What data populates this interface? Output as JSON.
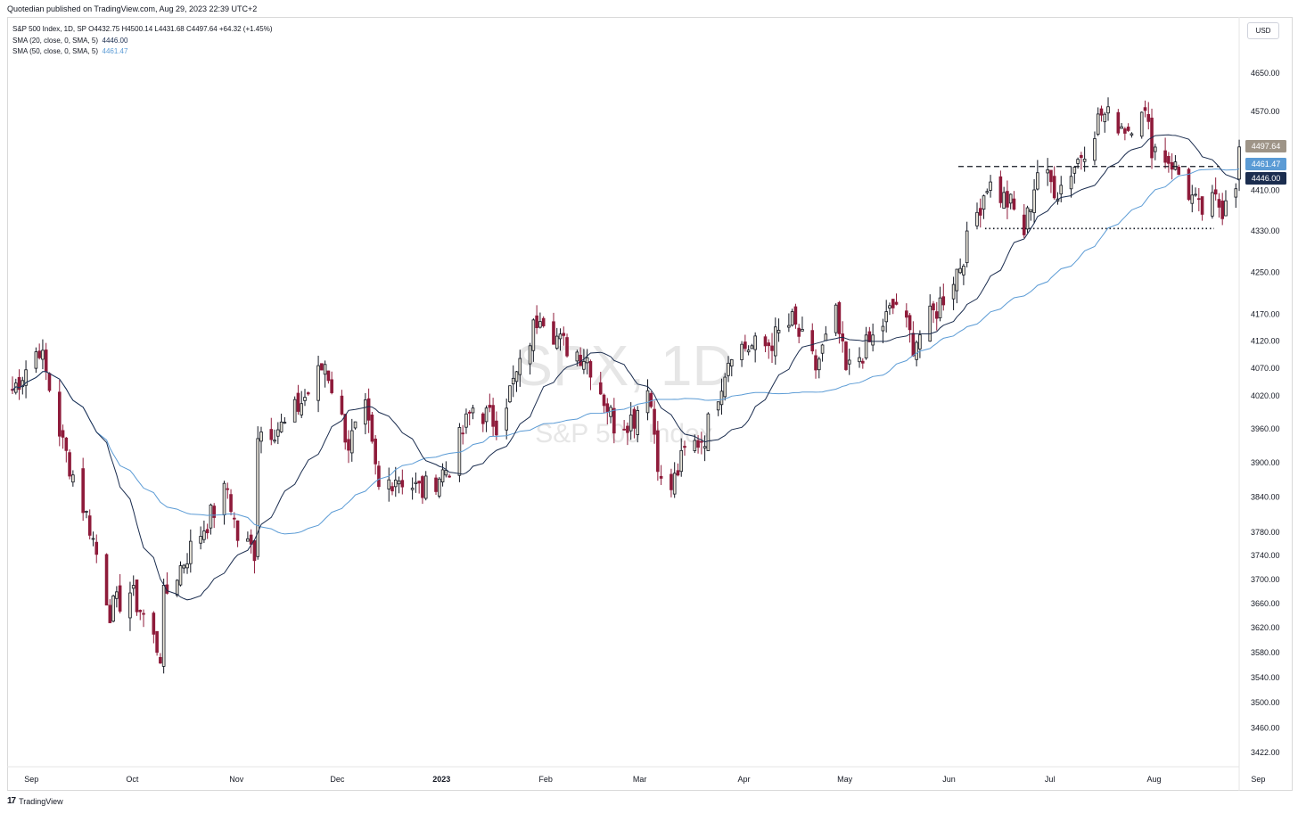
{
  "publisher": "Quotedian published on TradingView.com, Aug 29, 2023 22:39 UTC+2",
  "legend": {
    "symbol_line": "S&P 500 Index, 1D, SP  O4432.75  H4500.14  L4431.68  C4497.64  +64.32 (+1.45%)",
    "sma20_label": "SMA (20, close, 0, SMA, 5)",
    "sma20_value": "4446.00",
    "sma50_label": "SMA (50, close, 0, SMA, 5)",
    "sma50_value": "4461.47"
  },
  "currency": "USD",
  "watermark": {
    "symbol": "SPX, 1D",
    "name": "S&P 500 Index"
  },
  "footer": {
    "logo": "17",
    "brand": "TradingView"
  },
  "colors": {
    "up": "#e8e4d8",
    "down": "#8e1b3a",
    "outline": "#131722",
    "sma20": "#1b2d4f",
    "sma50": "#5b9bd5"
  },
  "chart_data": {
    "type": "candlestick",
    "y_scale": "log",
    "y_ticks": [
      "4650.00",
      "4570.00",
      "4410.00",
      "4330.00",
      "4250.00",
      "4170.00",
      "4120.00",
      "4070.00",
      "4020.00",
      "3960.00",
      "3900.00",
      "3840.00",
      "3780.00",
      "3740.00",
      "3700.00",
      "3660.00",
      "3620.00",
      "3580.00",
      "3540.00",
      "3500.00",
      "3460.00",
      "3422.00"
    ],
    "x_ticks": [
      "Sep",
      "Oct",
      "Nov",
      "Dec",
      "2023",
      "Feb",
      "Mar",
      "Apr",
      "May",
      "Jun",
      "Jul",
      "Aug",
      "Sep"
    ],
    "price_labels": [
      {
        "name": "close",
        "value": "4497.64",
        "color": "#9e9487"
      },
      {
        "name": "sma50",
        "value": "4461.47",
        "color": "#5b9bd5"
      },
      {
        "name": "sma20",
        "value": "4446.00",
        "color": "#1b2d4f"
      }
    ],
    "horizontal_lines": [
      {
        "style": "dashed",
        "value": 4458
      },
      {
        "style": "dotted",
        "value": 4335
      }
    ],
    "close_path": [
      [
        "2022-08-29",
        4030
      ],
      [
        "2022-09-06",
        4110
      ],
      [
        "2022-09-13",
        3932
      ],
      [
        "2022-09-21",
        3790
      ],
      [
        "2022-09-27",
        3648
      ],
      [
        "2022-10-03",
        3680
      ],
      [
        "2022-10-07",
        3640
      ],
      [
        "2022-10-12",
        3577
      ],
      [
        "2022-10-13",
        3669
      ],
      [
        "2022-10-21",
        3752
      ],
      [
        "2022-10-27",
        3807
      ],
      [
        "2022-11-01",
        3856
      ],
      [
        "2022-11-04",
        3770
      ],
      [
        "2022-11-09",
        3748
      ],
      [
        "2022-11-10",
        3956
      ],
      [
        "2022-11-18",
        3965
      ],
      [
        "2022-11-25",
        4026
      ],
      [
        "2022-11-30",
        4080
      ],
      [
        "2022-12-07",
        3933
      ],
      [
        "2022-12-12",
        3990
      ],
      [
        "2022-12-16",
        3852
      ],
      [
        "2022-12-21",
        3878
      ],
      [
        "2022-12-29",
        3850
      ],
      [
        "2023-01-06",
        3895
      ],
      [
        "2023-01-13",
        3999
      ],
      [
        "2023-01-20",
        3972
      ],
      [
        "2023-01-27",
        4070
      ],
      [
        "2023-02-02",
        4180
      ],
      [
        "2023-02-08",
        4117
      ],
      [
        "2023-02-16",
        4090
      ],
      [
        "2023-02-24",
        3970
      ],
      [
        "2023-03-02",
        3981
      ],
      [
        "2023-03-06",
        4048
      ],
      [
        "2023-03-10",
        3861
      ],
      [
        "2023-03-13",
        3855
      ],
      [
        "2023-03-17",
        3917
      ],
      [
        "2023-03-23",
        3949
      ],
      [
        "2023-03-31",
        4109
      ],
      [
        "2023-04-10",
        4110
      ],
      [
        "2023-04-18",
        4155
      ],
      [
        "2023-04-25",
        4071
      ],
      [
        "2023-05-01",
        4167
      ],
      [
        "2023-05-04",
        4061
      ],
      [
        "2023-05-12",
        4124
      ],
      [
        "2023-05-19",
        4192
      ],
      [
        "2023-05-24",
        4115
      ],
      [
        "2023-05-31",
        4180
      ],
      [
        "2023-06-07",
        4267
      ],
      [
        "2023-06-15",
        4425
      ],
      [
        "2023-06-22",
        4381
      ],
      [
        "2023-06-26",
        4328
      ],
      [
        "2023-06-30",
        4450
      ],
      [
        "2023-07-06",
        4411
      ],
      [
        "2023-07-12",
        4472
      ],
      [
        "2023-07-19",
        4565
      ],
      [
        "2023-07-27",
        4537
      ],
      [
        "2023-07-31",
        4589
      ],
      [
        "2023-08-03",
        4501
      ],
      [
        "2023-08-09",
        4467
      ],
      [
        "2023-08-17",
        4370
      ],
      [
        "2023-08-18",
        4369
      ],
      [
        "2023-08-22",
        4387
      ],
      [
        "2023-08-24",
        4376
      ],
      [
        "2023-08-25",
        4405
      ],
      [
        "2023-08-28",
        4433
      ],
      [
        "2023-08-29",
        4497.64
      ]
    ]
  }
}
